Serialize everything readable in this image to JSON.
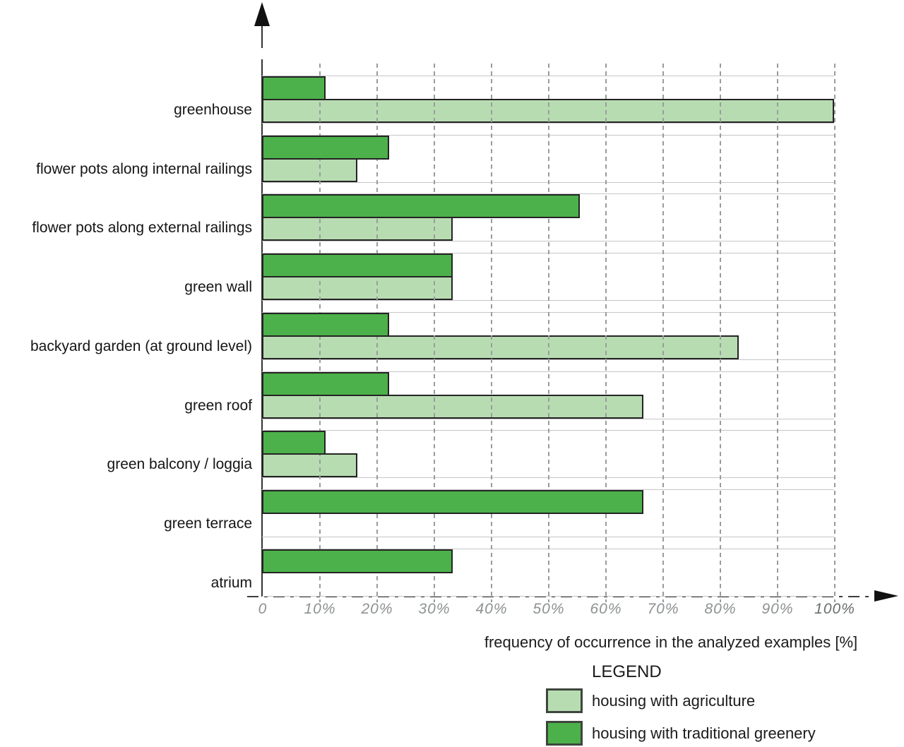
{
  "chart_data": {
    "type": "bar",
    "orientation": "horizontal",
    "title": "",
    "xlabel": "frequency of occurrence in the analyzed examples [%]",
    "xlim": [
      0,
      100
    ],
    "x_ticks": [
      "0",
      "10%",
      "20%",
      "30%",
      "40%",
      "50%",
      "60%",
      "70%",
      "80%",
      "90%",
      "100%"
    ],
    "grid": "vertical dashed lines every 10%; light horizontal lines bounding each category row",
    "legend_position": "bottom-right",
    "categories": [
      "greenhouse",
      "flower pots along internal railings",
      "flower pots along external railings",
      "green wall",
      "backyard garden (at ground level)",
      "green roof",
      "green balcony / loggia",
      "green terrace",
      "atrium"
    ],
    "series": [
      {
        "name": "housing with agriculture",
        "color": "#b8dcb2",
        "values": [
          100,
          16.7,
          33.3,
          33.3,
          83.3,
          66.7,
          16.7,
          0,
          0
        ]
      },
      {
        "name": "housing with traditional greenery",
        "color": "#4cb14a",
        "values": [
          11.1,
          22.2,
          55.6,
          33.3,
          22.2,
          22.2,
          11.1,
          66.7,
          33.3
        ]
      }
    ]
  },
  "legend": {
    "title": "LEGEND",
    "items": [
      {
        "label": "housing with agriculture",
        "swatch_color": "#b8dcb2"
      },
      {
        "label": "housing with traditional greenery",
        "swatch_color": "#4cb14a"
      }
    ]
  }
}
